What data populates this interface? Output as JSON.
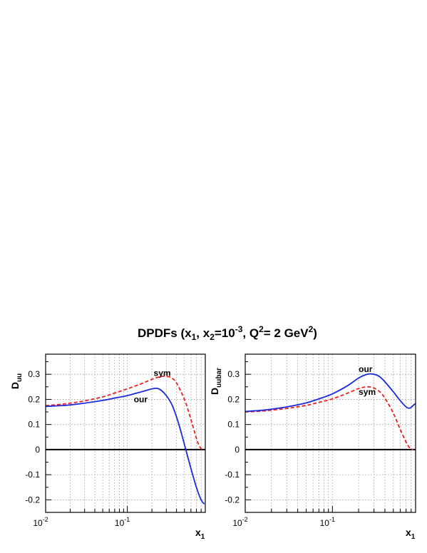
{
  "figure": {
    "title_parts": {
      "a": "DPDFs (x",
      "b": "1",
      "c": ", x",
      "d": "2",
      "e": "=10",
      "f": "-3",
      "g": ", Q",
      "h": "2",
      "i": "= 2 GeV",
      "j": "2",
      "k": ")"
    }
  },
  "chart_data": [
    {
      "type": "line",
      "ylabel": {
        "base": "D",
        "sub": "uu"
      },
      "xlabel": {
        "base": "x",
        "sub": "1"
      },
      "xscale": "log",
      "xlim": [
        0.01,
        0.9
      ],
      "ylim": [
        -0.25,
        0.38
      ],
      "grid": true,
      "x_ticks": [
        {
          "value": 0.01,
          "base": "10",
          "exp": "-2"
        },
        {
          "value": 0.1,
          "base": "10",
          "exp": "-1"
        }
      ],
      "y_ticks": [
        {
          "value": -0.2,
          "label": "-0.2"
        },
        {
          "value": -0.1,
          "label": "-0.1"
        },
        {
          "value": 0,
          "label": "0"
        },
        {
          "value": 0.1,
          "label": "0.1"
        },
        {
          "value": 0.2,
          "label": "0.2"
        },
        {
          "value": 0.3,
          "label": "0.3"
        }
      ],
      "zero_line": true,
      "series": [
        {
          "style": "dashed",
          "color": "#ee2020",
          "x": [
            0.01,
            0.015,
            0.02,
            0.03,
            0.05,
            0.07,
            0.1,
            0.15,
            0.2,
            0.25,
            0.3,
            0.35,
            0.4,
            0.5,
            0.6,
            0.7,
            0.75,
            0.8,
            0.85
          ],
          "y": [
            0.175,
            0.18,
            0.185,
            0.194,
            0.21,
            0.225,
            0.242,
            0.263,
            0.28,
            0.29,
            0.292,
            0.285,
            0.265,
            0.2,
            0.12,
            0.045,
            0.018,
            0.004,
            0.0
          ]
        },
        {
          "style": "solid",
          "color": "#1a2adc",
          "x": [
            0.01,
            0.015,
            0.02,
            0.03,
            0.05,
            0.07,
            0.1,
            0.13,
            0.16,
            0.2,
            0.23,
            0.26,
            0.3,
            0.35,
            0.4,
            0.45,
            0.5,
            0.55,
            0.6,
            0.65,
            0.7,
            0.75,
            0.8,
            0.85,
            0.88
          ],
          "y": [
            0.172,
            0.175,
            0.178,
            0.185,
            0.196,
            0.205,
            0.215,
            0.225,
            0.233,
            0.242,
            0.244,
            0.236,
            0.215,
            0.18,
            0.13,
            0.075,
            0.02,
            -0.03,
            -0.075,
            -0.115,
            -0.15,
            -0.178,
            -0.2,
            -0.213,
            -0.216
          ]
        }
      ],
      "annotations": [
        {
          "text": "sym",
          "x": 0.21,
          "y": 0.305
        },
        {
          "text": "our",
          "x": 0.12,
          "y": 0.2
        }
      ]
    },
    {
      "type": "line",
      "ylabel": {
        "base": "D",
        "sub": "uubar"
      },
      "xlabel": {
        "base": "x",
        "sub": "1"
      },
      "xscale": "log",
      "xlim": [
        0.01,
        0.9
      ],
      "ylim": [
        -0.25,
        0.38
      ],
      "grid": true,
      "x_ticks": [
        {
          "value": 0.01,
          "base": "10",
          "exp": "-2"
        },
        {
          "value": 0.1,
          "base": "10",
          "exp": "-1"
        }
      ],
      "y_ticks": [
        {
          "value": -0.2,
          "label": "-0.2"
        },
        {
          "value": -0.1,
          "label": "-0.1"
        },
        {
          "value": 0,
          "label": "0"
        },
        {
          "value": 0.1,
          "label": "0.1"
        },
        {
          "value": 0.2,
          "label": "0.2"
        },
        {
          "value": 0.3,
          "label": "0.3"
        }
      ],
      "zero_line": true,
      "series": [
        {
          "style": "dashed",
          "color": "#ee2020",
          "x": [
            0.01,
            0.015,
            0.02,
            0.03,
            0.05,
            0.07,
            0.1,
            0.15,
            0.2,
            0.25,
            0.3,
            0.35,
            0.4,
            0.5,
            0.6,
            0.7,
            0.75,
            0.8,
            0.85
          ],
          "y": [
            0.15,
            0.153,
            0.157,
            0.164,
            0.176,
            0.188,
            0.202,
            0.225,
            0.243,
            0.25,
            0.245,
            0.23,
            0.205,
            0.145,
            0.08,
            0.03,
            0.012,
            0.003,
            0.0
          ]
        },
        {
          "style": "solid",
          "color": "#1a2adc",
          "x": [
            0.01,
            0.015,
            0.02,
            0.03,
            0.05,
            0.07,
            0.1,
            0.15,
            0.2,
            0.25,
            0.3,
            0.35,
            0.4,
            0.5,
            0.6,
            0.7,
            0.75,
            0.8,
            0.85,
            0.9
          ],
          "y": [
            0.152,
            0.156,
            0.161,
            0.17,
            0.186,
            0.202,
            0.222,
            0.255,
            0.285,
            0.3,
            0.3,
            0.29,
            0.27,
            0.23,
            0.195,
            0.17,
            0.165,
            0.168,
            0.177,
            0.183
          ]
        }
      ],
      "annotations": [
        {
          "text": "our",
          "x": 0.2,
          "y": 0.32
        },
        {
          "text": "sym",
          "x": 0.2,
          "y": 0.23
        }
      ]
    }
  ]
}
